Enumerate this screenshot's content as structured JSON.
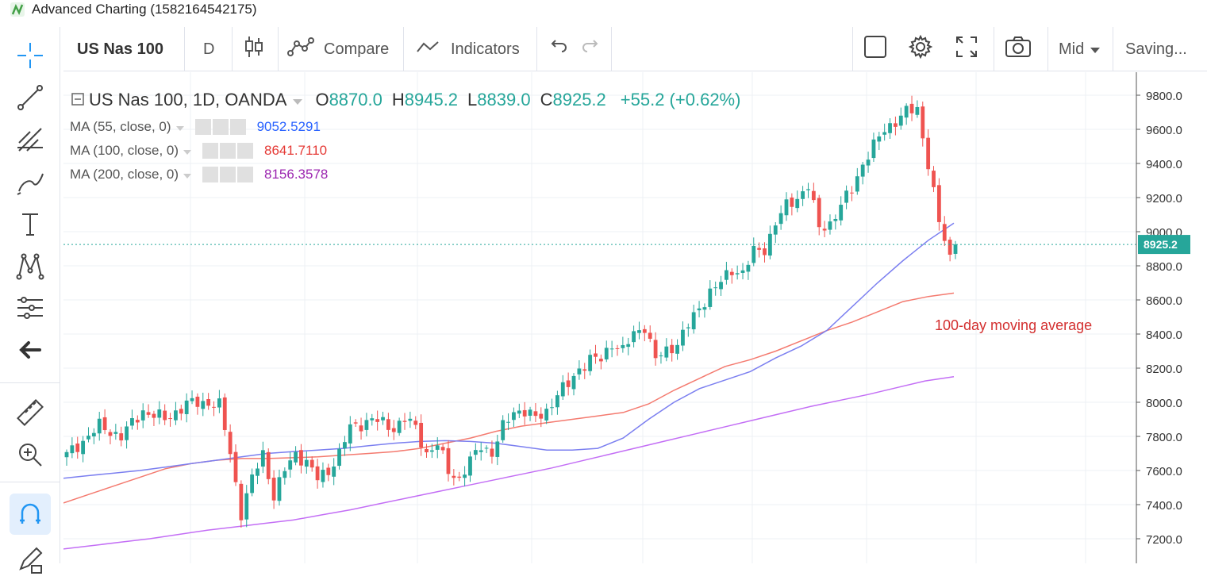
{
  "window": {
    "title": "Advanced Charting (1582164542175)"
  },
  "toolbar": {
    "symbol": "US Nas 100",
    "interval": "D",
    "compare": "Compare",
    "indicators": "Indicators",
    "price_type": "Mid",
    "save_status": "Saving..."
  },
  "legend": {
    "symbol": "US Nas 100, 1D, OANDA",
    "o_label": "O",
    "o_val": "8870.0",
    "h_label": "H",
    "h_val": "8945.2",
    "l_label": "L",
    "l_val": "8839.0",
    "c_label": "C",
    "c_val": "8925.2",
    "change": "+55.2 (+0.62%)",
    "indicators": [
      {
        "name": "MA (55, close, 0)",
        "value": "9052.5291",
        "color": "#2962ff"
      },
      {
        "name": "MA (100, close, 0)",
        "value": "8641.7110",
        "color": "#e53935"
      },
      {
        "name": "MA (200, close, 0)",
        "value": "8156.3578",
        "color": "#9c27b0"
      }
    ]
  },
  "annotation": {
    "text": "100-day moving average",
    "color": "#d32f2f"
  },
  "price_label": "8925.2",
  "colors": {
    "up": "#26a69a",
    "down": "#ef5350",
    "ma55": "#7b7ff0",
    "ma100": "#f47a6f",
    "ma200": "#c36ef5",
    "last_price": "#26a69a"
  },
  "chart_data": {
    "type": "candlestick",
    "ylim": [
      7120,
      9880
    ],
    "y_ticks": [
      "9800.0",
      "9600.0",
      "9400.0",
      "9200.0",
      "9000.0",
      "8800.0",
      "8600.0",
      "8400.0",
      "8200.0",
      "8000.0",
      "7800.0",
      "7600.0",
      "7400.0",
      "7200.0"
    ],
    "last_price": 8925.2,
    "ma55": [
      7555,
      7570,
      7585,
      7600,
      7620,
      7640,
      7660,
      7680,
      7700,
      7710,
      7720,
      7730,
      7745,
      7760,
      7770,
      7775,
      7770,
      7760,
      7740,
      7720,
      7720,
      7730,
      7790,
      7900,
      8000,
      8080,
      8130,
      8180,
      8260,
      8330,
      8420,
      8560,
      8700,
      8830,
      8950,
      9050
    ],
    "ma100": [
      7410,
      7460,
      7510,
      7560,
      7610,
      7640,
      7660,
      7670,
      7670,
      7675,
      7680,
      7690,
      7700,
      7710,
      7730,
      7760,
      7790,
      7830,
      7860,
      7880,
      7900,
      7920,
      7940,
      7990,
      8070,
      8140,
      8210,
      8250,
      8300,
      8360,
      8420,
      8470,
      8530,
      8590,
      8620,
      8640
    ],
    "ma200": [
      7140,
      7160,
      7180,
      7200,
      7225,
      7250,
      7270,
      7290,
      7310,
      7340,
      7370,
      7405,
      7440,
      7475,
      7510,
      7545,
      7580,
      7615,
      7655,
      7695,
      7735,
      7775,
      7815,
      7855,
      7895,
      7935,
      7975,
      8010,
      8045,
      8085,
      8125,
      8150
    ],
    "candles": []
  }
}
